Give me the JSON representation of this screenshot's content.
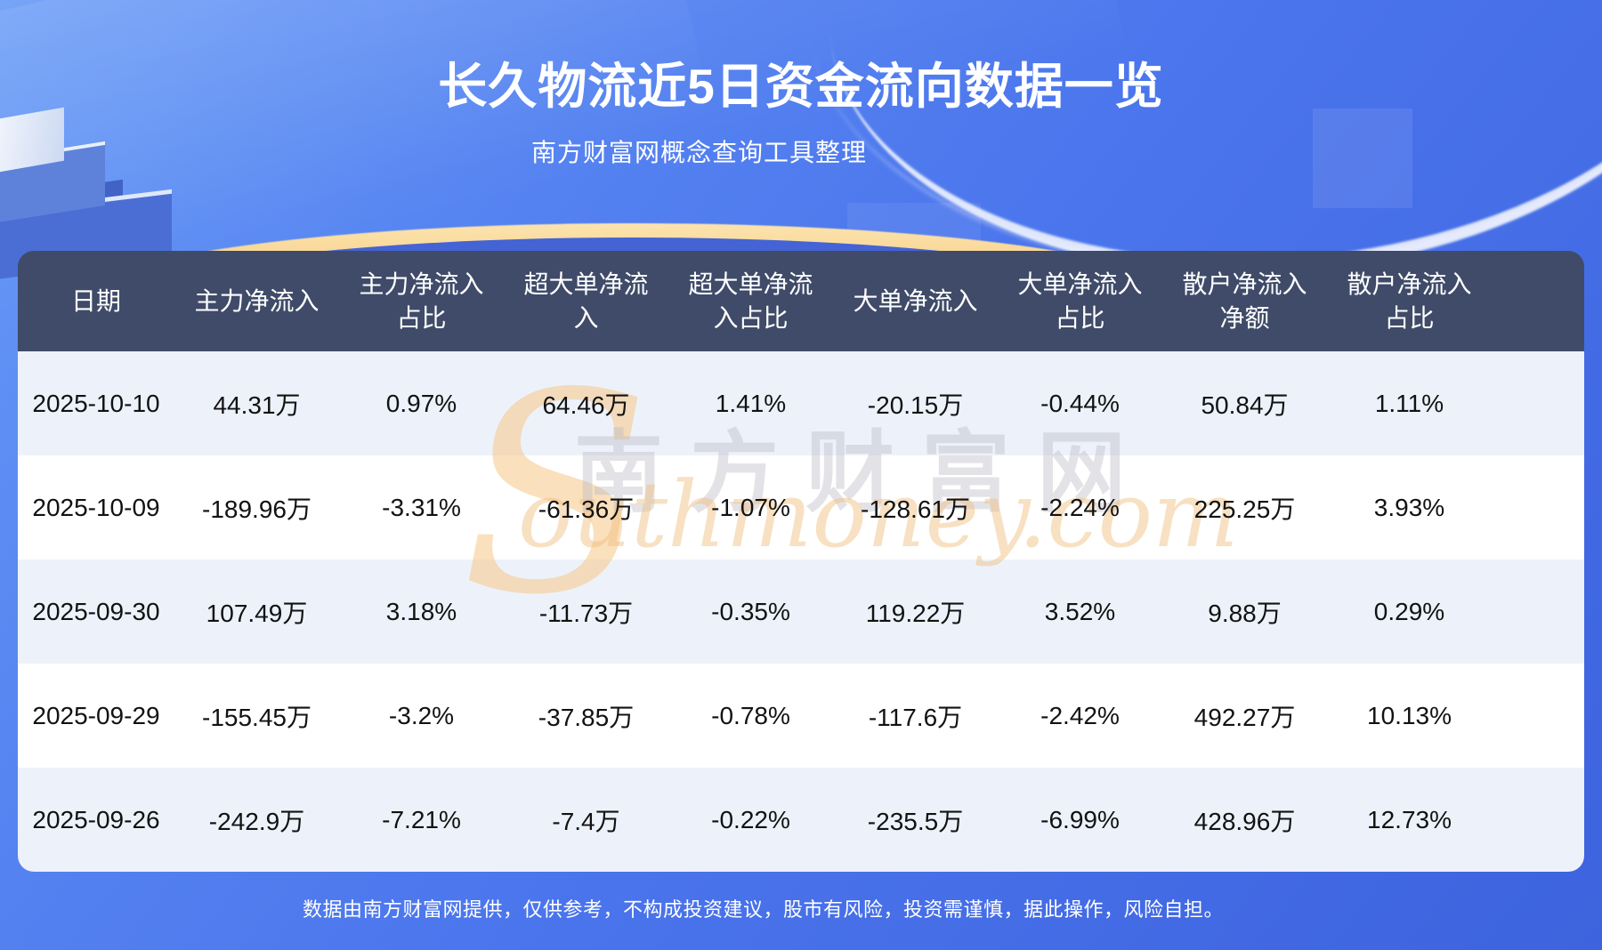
{
  "page": {
    "title": "长久物流近5日资金流向数据一览",
    "subtitle": "南方财富网概念查询工具整理",
    "footer": "数据由南方财富网提供，仅供参考，不构成投资建议，股市有风险，投资需谨慎，据此操作，风险自担。"
  },
  "watermark": {
    "cn": "南方财富网",
    "en_initial": "S",
    "en_rest": "outhmoney.com"
  },
  "colors": {
    "background_top": "#679af6",
    "background_bottom": "#3d63de",
    "table_header_bg": "#3f4b68",
    "row_light_bg": "#edf2fa",
    "row_white_bg": "#ffffff",
    "gold_accent": "#f2bd68",
    "heading_text": "#ffffff",
    "cell_text": "#121212"
  },
  "chart_data": {
    "type": "table",
    "title": "长久物流近5日资金流向数据一览",
    "columns": [
      "日期",
      "主力净流入",
      "主力净流入占比",
      "超大单净流入",
      "超大单净流入占比",
      "大单净流入",
      "大单净流入占比",
      "散户净流入净额",
      "散户净流入占比"
    ],
    "rows": [
      [
        "2025-10-10",
        "44.31万",
        "0.97%",
        "64.46万",
        "1.41%",
        "-20.15万",
        "-0.44%",
        "50.84万",
        "1.11%"
      ],
      [
        "2025-10-09",
        "-189.96万",
        "-3.31%",
        "-61.36万",
        "-1.07%",
        "-128.61万",
        "-2.24%",
        "225.25万",
        "3.93%"
      ],
      [
        "2025-09-30",
        "107.49万",
        "3.18%",
        "-11.73万",
        "-0.35%",
        "119.22万",
        "3.52%",
        "9.88万",
        "0.29%"
      ],
      [
        "2025-09-29",
        "-155.45万",
        "-3.2%",
        "-37.85万",
        "-0.78%",
        "-117.6万",
        "-2.42%",
        "492.27万",
        "10.13%"
      ],
      [
        "2025-09-26",
        "-242.9万",
        "-7.21%",
        "-7.4万",
        "-0.22%",
        "-235.5万",
        "-6.99%",
        "428.96万",
        "12.73%"
      ]
    ]
  }
}
